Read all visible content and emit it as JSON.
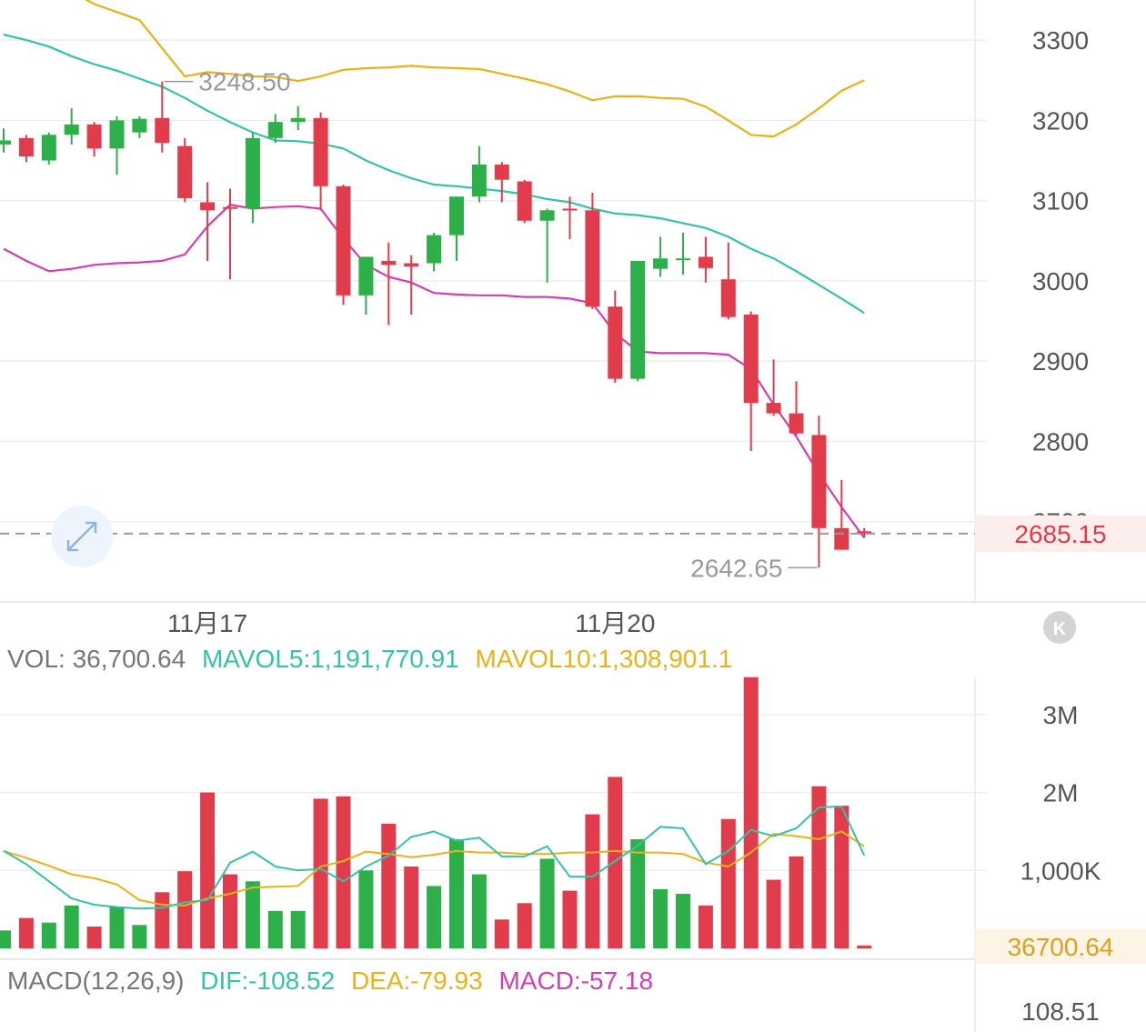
{
  "colors": {
    "up": "#2db04a",
    "down": "#e03c4b",
    "ma_teal": "#34c3a8",
    "ma_gold": "#e8b21a",
    "ma_pink": "#d43fb0",
    "grid": "#eeeeee",
    "axis_text": "#555555",
    "last_price": "#e03c4b",
    "last_vol": "#d9a11d"
  },
  "price_axis": {
    "min": 2600,
    "max": 3350,
    "ticks": [
      "3300",
      "3200",
      "3100",
      "3000",
      "2900",
      "2800",
      "2700"
    ],
    "tick_values": [
      3300,
      3200,
      3100,
      3000,
      2900,
      2800,
      2700
    ],
    "last_price_label": "2685.15",
    "last_price": 2685.15
  },
  "annotations": {
    "max_label": "3248.50",
    "max_value": 3248.5,
    "max_index": 7,
    "min_label": "2642.65",
    "min_value": 2642.65,
    "min_index": 36
  },
  "date_labels": [
    {
      "text": "11月17",
      "index": 9
    },
    {
      "text": "11月20",
      "index": 27
    }
  ],
  "icons": {
    "expand": "expand-arrows-icon",
    "collapse": "collapse-k-icon",
    "collapse_glyph": "K"
  },
  "volume_header": {
    "vol": "VOL: 36,700.64",
    "mavol5": "MAVOL5:1,191,770.91",
    "mavol10": "MAVOL10:1,308,901.1"
  },
  "volume_axis": {
    "max": 3500000,
    "ticks": [
      "3M",
      "2M",
      "1,000K"
    ],
    "tick_values": [
      3000000,
      2000000,
      1000000
    ],
    "last_label": "36700.64",
    "last_value": 36700.64
  },
  "macd_header": {
    "title": "MACD(12,26,9)",
    "dif": "DIF:-108.52",
    "dea": "DEA:-79.93",
    "macd": "MACD:-57.18"
  },
  "macd_axis": {
    "top_label": "108.51"
  },
  "chart_data": {
    "type": "candlestick",
    "candles": [
      {
        "o": 3170,
        "h": 3190,
        "l": 3160,
        "c": 3175
      },
      {
        "o": 3178,
        "h": 3182,
        "l": 3148,
        "c": 3155
      },
      {
        "o": 3150,
        "h": 3185,
        "l": 3145,
        "c": 3182
      },
      {
        "o": 3182,
        "h": 3215,
        "l": 3170,
        "c": 3195
      },
      {
        "o": 3195,
        "h": 3198,
        "l": 3155,
        "c": 3165
      },
      {
        "o": 3165,
        "h": 3205,
        "l": 3132,
        "c": 3200
      },
      {
        "o": 3185,
        "h": 3205,
        "l": 3178,
        "c": 3202
      },
      {
        "o": 3203,
        "h": 3248.5,
        "l": 3160,
        "c": 3172
      },
      {
        "o": 3168,
        "h": 3178,
        "l": 3098,
        "c": 3103
      },
      {
        "o": 3098,
        "h": 3123,
        "l": 3025,
        "c": 3088
      },
      {
        "o": 3092,
        "h": 3115,
        "l": 3002,
        "c": 3090
      },
      {
        "o": 3090,
        "h": 3185,
        "l": 3072,
        "c": 3178
      },
      {
        "o": 3178,
        "h": 3208,
        "l": 3172,
        "c": 3198
      },
      {
        "o": 3198,
        "h": 3218,
        "l": 3188,
        "c": 3203
      },
      {
        "o": 3203,
        "h": 3210,
        "l": 3088,
        "c": 3118
      },
      {
        "o": 3118,
        "h": 3120,
        "l": 2970,
        "c": 2982
      },
      {
        "o": 2982,
        "h": 3030,
        "l": 2958,
        "c": 3030
      },
      {
        "o": 3025,
        "h": 3048,
        "l": 2945,
        "c": 3020
      },
      {
        "o": 3022,
        "h": 3032,
        "l": 2958,
        "c": 3018
      },
      {
        "o": 3022,
        "h": 3060,
        "l": 3012,
        "c": 3057
      },
      {
        "o": 3057,
        "h": 3105,
        "l": 3025,
        "c": 3105
      },
      {
        "o": 3105,
        "h": 3168,
        "l": 3098,
        "c": 3145
      },
      {
        "o": 3145,
        "h": 3148,
        "l": 3098,
        "c": 3126
      },
      {
        "o": 3124,
        "h": 3126,
        "l": 3072,
        "c": 3075
      },
      {
        "o": 3075,
        "h": 3090,
        "l": 2998,
        "c": 3088
      },
      {
        "o": 3090,
        "h": 3105,
        "l": 3052,
        "c": 3088
      },
      {
        "o": 3088,
        "h": 3110,
        "l": 2965,
        "c": 2968
      },
      {
        "o": 2968,
        "h": 2988,
        "l": 2873,
        "c": 2878
      },
      {
        "o": 2878,
        "h": 3025,
        "l": 2875,
        "c": 3025
      },
      {
        "o": 3015,
        "h": 3055,
        "l": 3005,
        "c": 3028
      },
      {
        "o": 3028,
        "h": 3060,
        "l": 3008,
        "c": 3028
      },
      {
        "o": 3030,
        "h": 3055,
        "l": 2998,
        "c": 3016
      },
      {
        "o": 3002,
        "h": 3048,
        "l": 2952,
        "c": 2955
      },
      {
        "o": 2958,
        "h": 2962,
        "l": 2788,
        "c": 2848
      },
      {
        "o": 2848,
        "h": 2902,
        "l": 2832,
        "c": 2835
      },
      {
        "o": 2835,
        "h": 2875,
        "l": 2808,
        "c": 2810
      },
      {
        "o": 2808,
        "h": 2832,
        "l": 2642.65,
        "c": 2692
      },
      {
        "o": 2692,
        "h": 2752,
        "l": 2665,
        "c": 2665
      },
      {
        "o": 2688,
        "h": 2692,
        "l": 2680,
        "c": 2685.15
      }
    ],
    "ma_teal_price": [
      3307,
      3300,
      3292,
      3280,
      3270,
      3262,
      3252,
      3242,
      3228,
      3212,
      3198,
      3185,
      3175,
      3174,
      3171,
      3165,
      3150,
      3138,
      3128,
      3120,
      3118,
      3115,
      3112,
      3108,
      3102,
      3098,
      3090,
      3084,
      3082,
      3078,
      3072,
      3066,
      3055,
      3040,
      3028,
      3012,
      2995,
      2978,
      2960
    ],
    "ma_gold_price": [
      3390,
      3385,
      3372,
      3360,
      3345,
      3335,
      3325,
      3290,
      3255,
      3260,
      3258,
      3255,
      3254,
      3249,
      3255,
      3263,
      3265,
      3266,
      3268,
      3266,
      3265,
      3264,
      3258,
      3252,
      3245,
      3236,
      3225,
      3230,
      3230,
      3228,
      3227,
      3217,
      3200,
      3182,
      3180,
      3195,
      3215,
      3237,
      3250
    ],
    "ma_pink_price": [
      3040,
      3025,
      3012,
      3015,
      3020,
      3022,
      3023,
      3025,
      3033,
      3068,
      3095,
      3090,
      3092,
      3093,
      3090,
      3053,
      3020,
      3005,
      2998,
      2985,
      2983,
      2982,
      2982,
      2980,
      2980,
      2978,
      2972,
      2935,
      2912,
      2910,
      2910,
      2910,
      2908,
      2890,
      2846,
      2806,
      2760,
      2718,
      2680
    ],
    "volume": [
      230000,
      390000,
      330000,
      550000,
      280000,
      530000,
      300000,
      720000,
      990000,
      2000000,
      950000,
      860000,
      480000,
      480000,
      1920000,
      1950000,
      1000000,
      1600000,
      1050000,
      800000,
      1400000,
      950000,
      370000,
      580000,
      1150000,
      740000,
      1720000,
      2200000,
      1400000,
      760000,
      700000,
      550000,
      1660000,
      3480000,
      880000,
      1180000,
      2080000,
      1830000,
      36700.64
    ],
    "mavol5": [
      1250000,
      1080000,
      860000,
      640000,
      560000,
      530000,
      510000,
      520000,
      590000,
      620000,
      1100000,
      1240000,
      1050000,
      1000000,
      1020000,
      860000,
      1050000,
      1190000,
      1430000,
      1500000,
      1380000,
      1420000,
      1180000,
      1180000,
      1310000,
      920000,
      920000,
      1120000,
      1320000,
      1560000,
      1540000,
      1080000,
      1250000,
      1520000,
      1440000,
      1540000,
      1810000,
      1820000,
      1191770.91
    ],
    "mavol10": [
      1250000,
      1160000,
      1060000,
      950000,
      900000,
      820000,
      620000,
      560000,
      550000,
      640000,
      700000,
      780000,
      790000,
      800000,
      1050000,
      1120000,
      1240000,
      1210000,
      1170000,
      1200000,
      1250000,
      1230000,
      1230000,
      1210000,
      1210000,
      1230000,
      1230000,
      1250000,
      1230000,
      1230000,
      1210000,
      1100000,
      1050000,
      1230000,
      1470000,
      1440000,
      1400000,
      1500000,
      1308901.1
    ],
    "x_labels": [
      "11月17",
      "11月20"
    ],
    "ylim": [
      2600,
      3350
    ]
  }
}
